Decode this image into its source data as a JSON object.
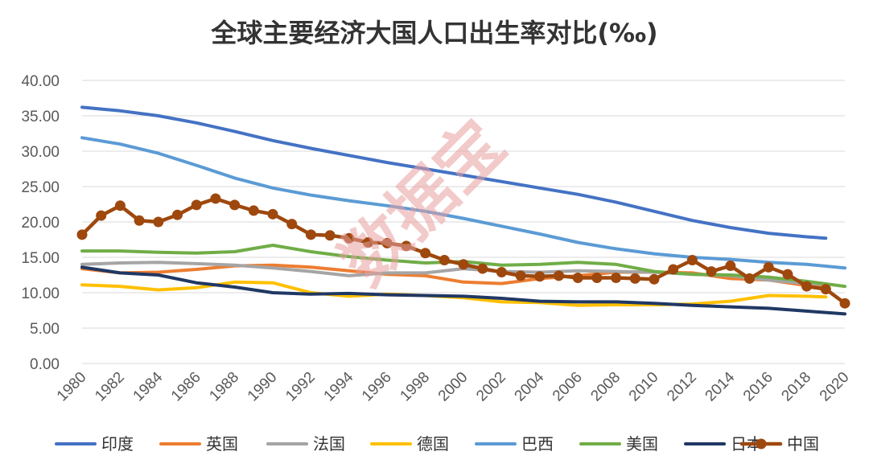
{
  "chart_data": {
    "type": "line",
    "title": "全球主要经济大国人口出生率对比(‰)",
    "watermark": "数据宝",
    "xlabel": "",
    "ylabel": "",
    "ylim": [
      0,
      40
    ],
    "ytick_labels": [
      "0.00",
      "5.00",
      "10.00",
      "15.00",
      "20.00",
      "25.00",
      "30.00",
      "35.00",
      "40.00"
    ],
    "xlim": [
      1980,
      2020
    ],
    "xtick_labels": [
      "1980",
      "1982",
      "1984",
      "1986",
      "1988",
      "1990",
      "1992",
      "1994",
      "1996",
      "1998",
      "2000",
      "2002",
      "2004",
      "2006",
      "2008",
      "2010",
      "2012",
      "2014",
      "2016",
      "2018",
      "2020"
    ],
    "grid": true,
    "legend_position": "bottom",
    "series": [
      {
        "name": "印度",
        "color": "#4472c4",
        "markers": false,
        "x": [
          1980,
          1982,
          1984,
          1986,
          1988,
          1990,
          1992,
          1994,
          1996,
          1998,
          2000,
          2002,
          2004,
          2006,
          2008,
          2010,
          2012,
          2014,
          2016,
          2018,
          2019
        ],
        "values": [
          36.2,
          35.7,
          35.0,
          34.0,
          32.8,
          31.5,
          30.4,
          29.4,
          28.4,
          27.5,
          26.6,
          25.7,
          24.8,
          23.9,
          22.8,
          21.5,
          20.2,
          19.2,
          18.4,
          17.9,
          17.7
        ]
      },
      {
        "name": "英国",
        "color": "#ed7d31",
        "markers": false,
        "x": [
          1980,
          1982,
          1984,
          1986,
          1988,
          1990,
          1992,
          1994,
          1996,
          1998,
          2000,
          2002,
          2004,
          2006,
          2008,
          2010,
          2012,
          2014,
          2016,
          2018,
          2019
        ],
        "values": [
          13.4,
          12.8,
          12.9,
          13.3,
          13.8,
          13.9,
          13.6,
          13.1,
          12.6,
          12.4,
          11.5,
          11.3,
          12.0,
          12.4,
          12.9,
          12.9,
          12.8,
          12.0,
          11.8,
          11.0,
          10.7
        ]
      },
      {
        "name": "法国",
        "color": "#a5a5a5",
        "markers": false,
        "x": [
          1980,
          1982,
          1984,
          1986,
          1988,
          1990,
          1992,
          1994,
          1996,
          1998,
          2000,
          2002,
          2004,
          2006,
          2008,
          2010,
          2012,
          2014,
          2016,
          2018,
          2019
        ],
        "values": [
          14.0,
          14.2,
          14.3,
          14.1,
          13.9,
          13.5,
          13.0,
          12.4,
          12.8,
          12.8,
          13.4,
          13.0,
          12.9,
          13.1,
          13.0,
          12.9,
          12.6,
          12.4,
          11.8,
          11.3,
          11.2
        ]
      },
      {
        "name": "德国",
        "color": "#ffc000",
        "markers": false,
        "x": [
          1980,
          1982,
          1984,
          1986,
          1988,
          1990,
          1992,
          1994,
          1996,
          1998,
          2000,
          2002,
          2004,
          2006,
          2008,
          2010,
          2012,
          2014,
          2016,
          2018,
          2019
        ],
        "values": [
          11.1,
          10.9,
          10.4,
          10.7,
          11.5,
          11.4,
          10.0,
          9.5,
          9.8,
          9.6,
          9.3,
          8.7,
          8.6,
          8.2,
          8.3,
          8.3,
          8.4,
          8.8,
          9.6,
          9.5,
          9.4
        ]
      },
      {
        "name": "巴西",
        "color": "#5b9bd5",
        "markers": false,
        "x": [
          1980,
          1982,
          1984,
          1986,
          1988,
          1990,
          1992,
          1994,
          1996,
          1998,
          2000,
          2002,
          2004,
          2006,
          2008,
          2010,
          2012,
          2014,
          2016,
          2018,
          2020
        ],
        "values": [
          31.9,
          31.0,
          29.7,
          28.0,
          26.2,
          24.8,
          23.8,
          23.0,
          22.3,
          21.5,
          20.5,
          19.4,
          18.3,
          17.1,
          16.2,
          15.5,
          15.0,
          14.7,
          14.3,
          14.0,
          13.5
        ]
      },
      {
        "name": "美国",
        "color": "#70ad47",
        "markers": false,
        "x": [
          1980,
          1982,
          1984,
          1986,
          1988,
          1990,
          1992,
          1994,
          1996,
          1998,
          2000,
          2002,
          2004,
          2006,
          2008,
          2010,
          2012,
          2014,
          2016,
          2018,
          2020
        ],
        "values": [
          15.9,
          15.9,
          15.7,
          15.6,
          15.8,
          16.7,
          15.8,
          15.1,
          14.6,
          14.2,
          14.4,
          13.9,
          14.0,
          14.3,
          14.0,
          13.0,
          12.6,
          12.5,
          12.2,
          11.6,
          10.9
        ]
      },
      {
        "name": "日本",
        "color": "#203864",
        "markers": false,
        "x": [
          1980,
          1982,
          1984,
          1986,
          1988,
          1990,
          1992,
          1994,
          1996,
          1998,
          2000,
          2002,
          2004,
          2006,
          2008,
          2010,
          2012,
          2014,
          2016,
          2018,
          2020
        ],
        "values": [
          13.6,
          12.8,
          12.5,
          11.4,
          10.8,
          10.0,
          9.8,
          9.9,
          9.7,
          9.6,
          9.5,
          9.2,
          8.8,
          8.7,
          8.7,
          8.5,
          8.2,
          8.0,
          7.8,
          7.4,
          7.0
        ]
      },
      {
        "name": "中国",
        "color": "#9e480e",
        "markers": true,
        "x": [
          1980,
          1981,
          1982,
          1983,
          1984,
          1985,
          1986,
          1987,
          1988,
          1989,
          1990,
          1991,
          1992,
          1993,
          1994,
          1995,
          1996,
          1997,
          1998,
          1999,
          2000,
          2001,
          2002,
          2003,
          2004,
          2005,
          2006,
          2007,
          2008,
          2009,
          2010,
          2011,
          2012,
          2013,
          2014,
          2015,
          2016,
          2017,
          2018,
          2019,
          2020
        ],
        "values": [
          18.2,
          20.9,
          22.3,
          20.2,
          20.0,
          21.0,
          22.4,
          23.3,
          22.4,
          21.6,
          21.1,
          19.7,
          18.2,
          18.1,
          17.7,
          17.1,
          17.0,
          16.6,
          15.6,
          14.6,
          14.0,
          13.4,
          12.9,
          12.4,
          12.3,
          12.4,
          12.1,
          12.1,
          12.1,
          12.0,
          11.9,
          13.3,
          14.6,
          13.0,
          13.8,
          12.0,
          13.6,
          12.6,
          10.9,
          10.5,
          8.5
        ]
      }
    ]
  }
}
